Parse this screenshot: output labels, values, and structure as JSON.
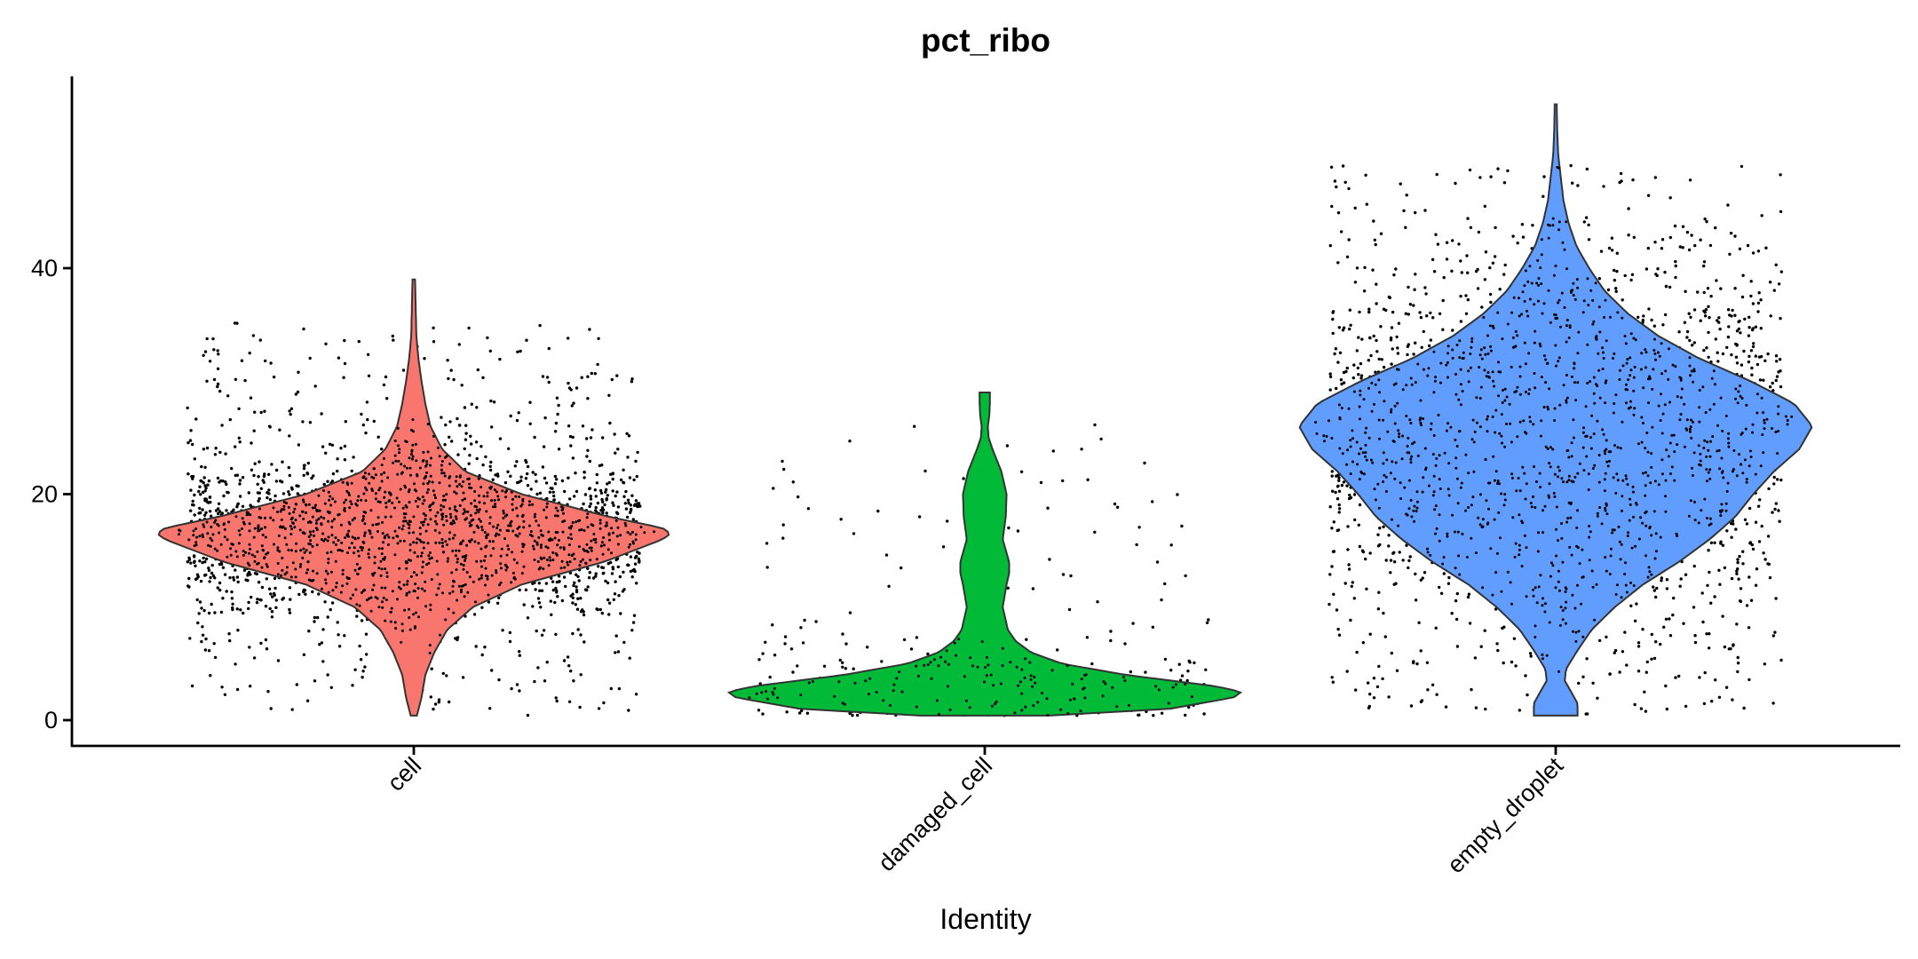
{
  "chart_data": {
    "type": "violin",
    "title": "pct_ribo",
    "xlabel": "Identity",
    "ylabel": "",
    "ylim": [
      -2.2,
      57
    ],
    "yticks": [
      0,
      20,
      40
    ],
    "grid": false,
    "legend": "none",
    "categories": [
      "cell",
      "damaged_cell",
      "empty_droplet"
    ],
    "series": [
      {
        "category": "cell",
        "color": "#F8766D",
        "min": 0.4,
        "max": 39,
        "density": [
          [
            0.4,
            0.012
          ],
          [
            2,
            0.03
          ],
          [
            4,
            0.045
          ],
          [
            6,
            0.08
          ],
          [
            8,
            0.13
          ],
          [
            10,
            0.23
          ],
          [
            12,
            0.42
          ],
          [
            14,
            0.74
          ],
          [
            16,
            0.97
          ],
          [
            16.5,
            1.0
          ],
          [
            17,
            0.97
          ],
          [
            18,
            0.76
          ],
          [
            20,
            0.42
          ],
          [
            22,
            0.2
          ],
          [
            24,
            0.11
          ],
          [
            26,
            0.065
          ],
          [
            28,
            0.045
          ],
          [
            30,
            0.03
          ],
          [
            32,
            0.018
          ],
          [
            34,
            0.01
          ],
          [
            36,
            0.008
          ],
          [
            39,
            0.005
          ]
        ],
        "jitter": {
          "n": 2400,
          "center": 16.5,
          "spread": 3.2,
          "outlier_frac": 0.22
        }
      },
      {
        "category": "damaged_cell",
        "color": "#00BA38",
        "min": 0.4,
        "max": 29,
        "density": [
          [
            0.4,
            0.25
          ],
          [
            1,
            0.72
          ],
          [
            2,
            0.97
          ],
          [
            2.5,
            1.0
          ],
          [
            3,
            0.9
          ],
          [
            4,
            0.55
          ],
          [
            5,
            0.3
          ],
          [
            6,
            0.18
          ],
          [
            7,
            0.12
          ],
          [
            8,
            0.09
          ],
          [
            10,
            0.07
          ],
          [
            12,
            0.085
          ],
          [
            13,
            0.095
          ],
          [
            14,
            0.095
          ],
          [
            16,
            0.07
          ],
          [
            18,
            0.082
          ],
          [
            20,
            0.085
          ],
          [
            22,
            0.065
          ],
          [
            24,
            0.03
          ],
          [
            25,
            0.015
          ],
          [
            26,
            0.012
          ],
          [
            27,
            0.018
          ],
          [
            28,
            0.02
          ],
          [
            29,
            0.02
          ]
        ],
        "jitter": {
          "n": 300,
          "center": 2.5,
          "spread": 2.2,
          "outlier_frac": 0.3
        }
      },
      {
        "category": "empty_droplet",
        "color": "#619CFF",
        "min": 0.4,
        "max": 54.5,
        "density": [
          [
            0.4,
            0.085
          ],
          [
            1.5,
            0.085
          ],
          [
            2.5,
            0.06
          ],
          [
            3.5,
            0.035
          ],
          [
            4.5,
            0.04
          ],
          [
            6,
            0.08
          ],
          [
            8,
            0.14
          ],
          [
            10,
            0.23
          ],
          [
            12,
            0.34
          ],
          [
            14,
            0.48
          ],
          [
            16,
            0.6
          ],
          [
            18,
            0.7
          ],
          [
            20,
            0.77
          ],
          [
            22,
            0.85
          ],
          [
            24,
            0.95
          ],
          [
            26,
            1.0
          ],
          [
            28,
            0.93
          ],
          [
            30,
            0.76
          ],
          [
            32,
            0.56
          ],
          [
            34,
            0.4
          ],
          [
            36,
            0.28
          ],
          [
            38,
            0.19
          ],
          [
            40,
            0.13
          ],
          [
            42,
            0.08
          ],
          [
            44,
            0.05
          ],
          [
            46,
            0.03
          ],
          [
            48,
            0.02
          ],
          [
            50,
            0.01
          ],
          [
            52,
            0.006
          ],
          [
            54.5,
            0.004
          ]
        ],
        "jitter": {
          "n": 2200,
          "center": 25,
          "spread": 7.5,
          "outlier_frac": 0.25
        }
      }
    ]
  }
}
